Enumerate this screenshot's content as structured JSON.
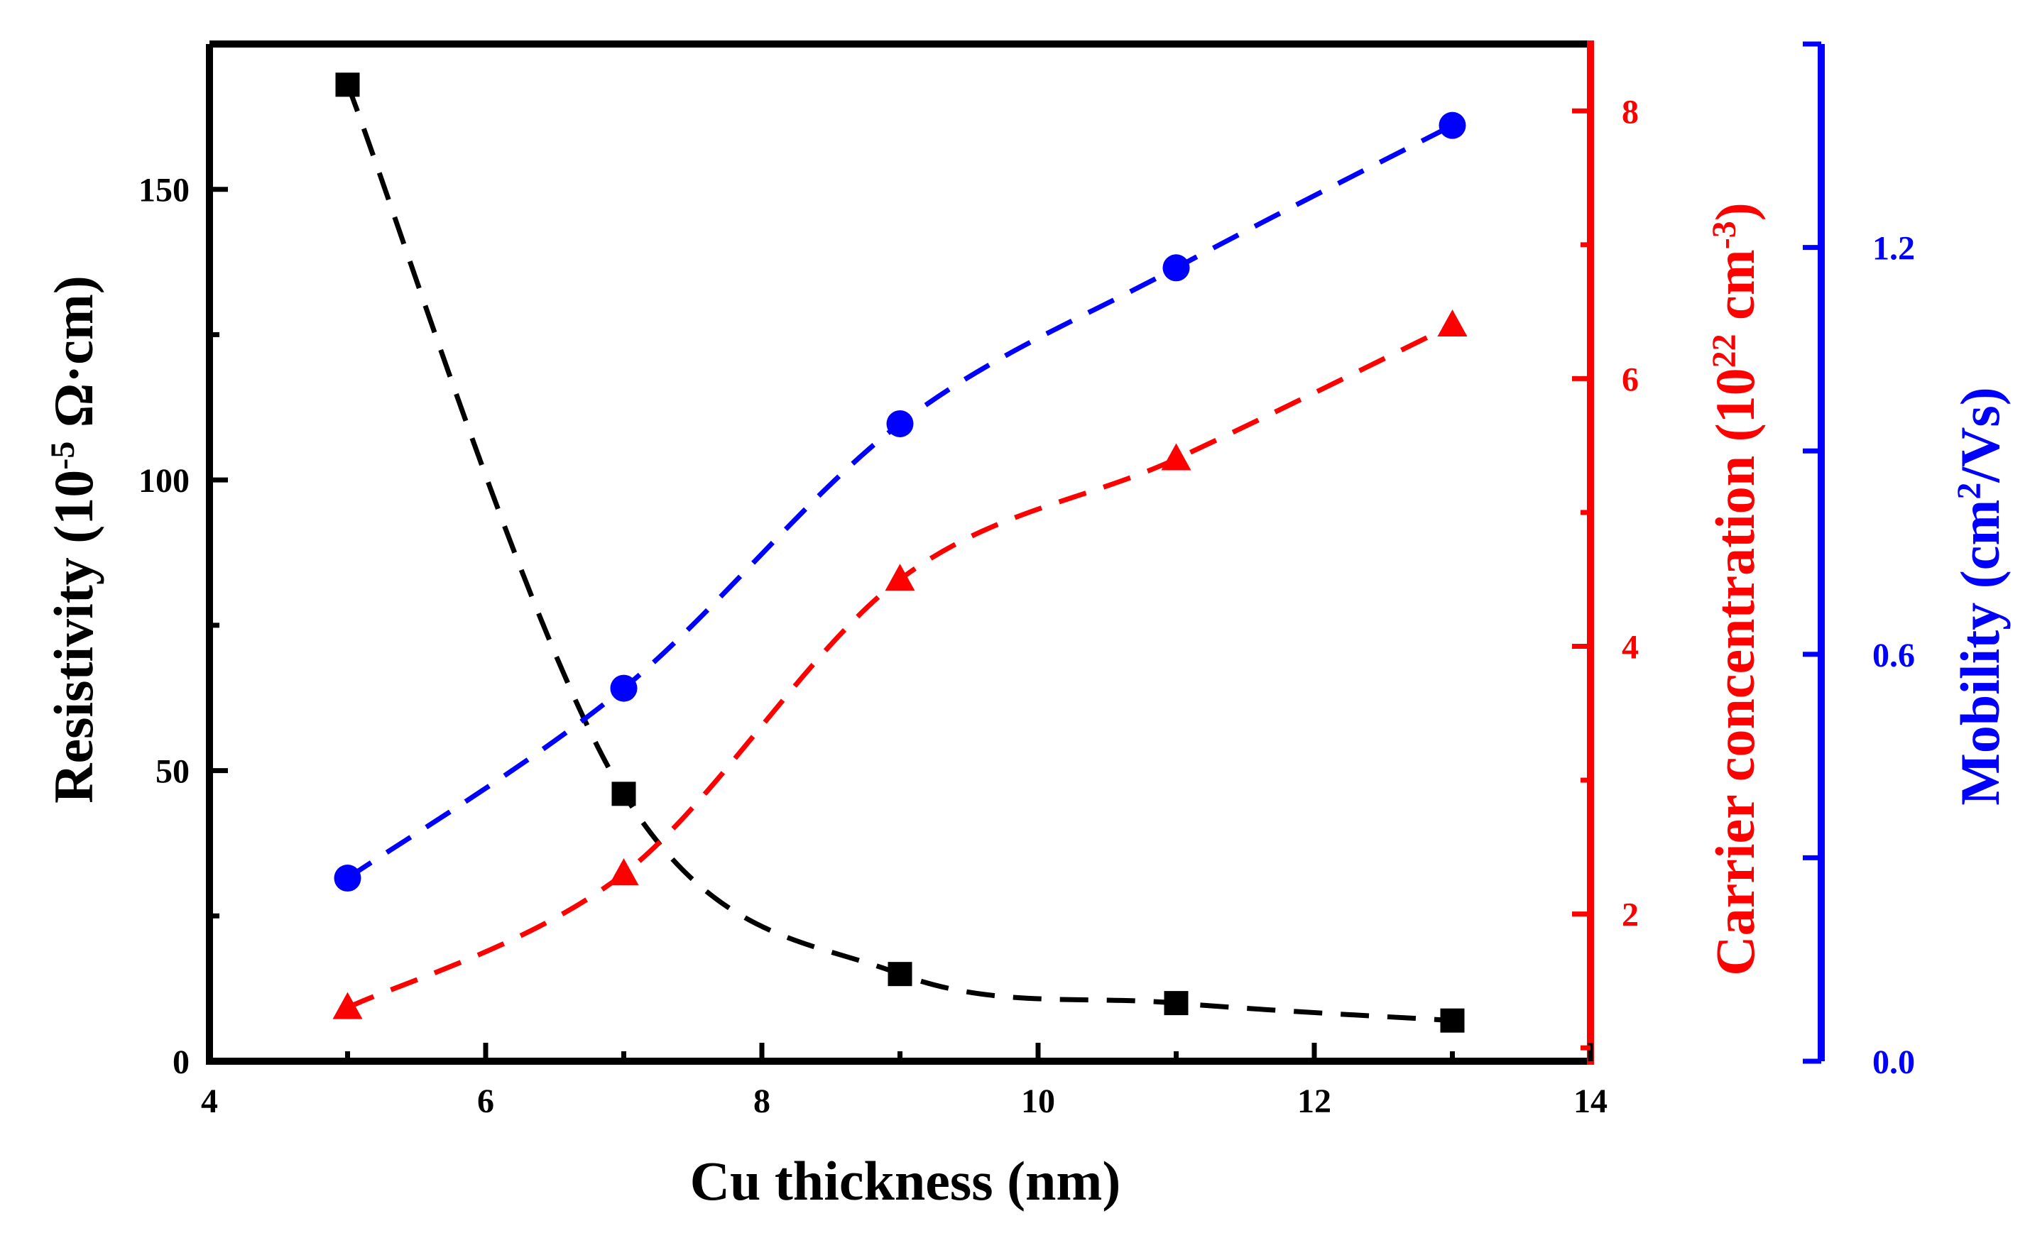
{
  "chart_data": {
    "type": "scatter",
    "xlabel": "Cu thickness (nm)",
    "x": [
      5,
      7,
      9,
      11,
      13
    ],
    "xlim": [
      4,
      14
    ],
    "xticks": [
      "4",
      "6",
      "8",
      "10",
      "12",
      "14"
    ],
    "axes": {
      "left": {
        "label_main": "Resistivity (10",
        "label_sup": "-5",
        "label_tail": " Ω·cm)",
        "ylim": [
          0,
          175
        ],
        "ticks": [
          "0",
          "50",
          "100",
          "150"
        ],
        "color": "#000000"
      },
      "right1": {
        "label_main": "Carrier concentration (10",
        "label_sup1": "22",
        "label_mid": " cm",
        "label_sup2": "-3",
        "label_tail": ")",
        "ylim": [
          0.9,
          8.5
        ],
        "ticks": [
          "2",
          "4",
          "6",
          "8"
        ],
        "color": "#ff0000"
      },
      "right2": {
        "label_main": "Mobility (cm",
        "label_sup": "2",
        "label_tail": "/Vs)",
        "ylim": [
          0,
          1.5
        ],
        "ticks": [
          "0.0",
          "0.6",
          "1.2"
        ],
        "color": "#0000ff"
      }
    },
    "series": [
      {
        "name": "Resistivity",
        "axis": "left",
        "marker": "square",
        "color": "#000000",
        "values": [
          168,
          46,
          15,
          10,
          7
        ]
      },
      {
        "name": "Carrier concentration",
        "axis": "right1",
        "marker": "triangle",
        "color": "#ff0000",
        "values": [
          1.3,
          2.3,
          4.5,
          5.4,
          6.4
        ]
      },
      {
        "name": "Mobility",
        "axis": "right2",
        "marker": "circle",
        "color": "#0000ff",
        "values": [
          0.27,
          0.55,
          0.94,
          1.17,
          1.38
        ]
      }
    ]
  }
}
